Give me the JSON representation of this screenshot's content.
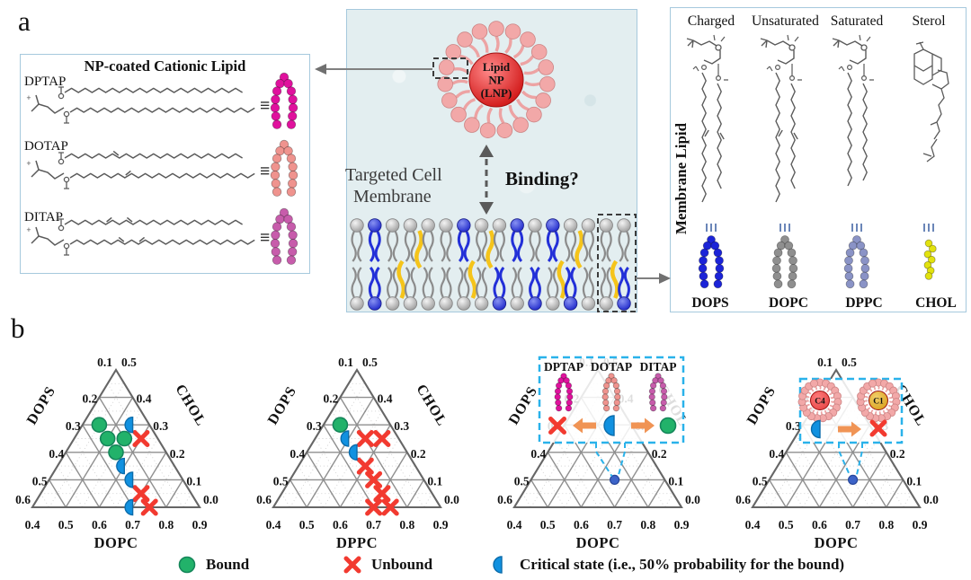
{
  "figure": {
    "panel_a_label": "a",
    "panel_b_label": "b"
  },
  "cationic_box": {
    "title": "NP-coated Cationic Lipid",
    "equiv_symbol": "≡",
    "lipids": [
      {
        "name": "DPTAP",
        "bead_color": "#e0119d",
        "double_bonds": 0
      },
      {
        "name": "DOTAP",
        "bead_color": "#ef938e",
        "double_bonds": 1
      },
      {
        "name": "DITAP",
        "bead_color": "#c75cab",
        "double_bonds": 2
      }
    ]
  },
  "center_panel": {
    "np_label_lines": [
      "Lipid",
      "NP",
      "(LNP)"
    ],
    "membrane_caption_lines": [
      "Targeted Cell",
      "Membrane"
    ],
    "binding_question": "Binding?"
  },
  "membrane_box": {
    "side_label": "Membrane Lipid",
    "headers": [
      "Charged",
      "Unsaturated",
      "Saturated",
      "Sterol"
    ],
    "equiv_symbol": "|||",
    "lipids": [
      {
        "name": "DOPS",
        "bead_color": "#1c24d8"
      },
      {
        "name": "DOPC",
        "bead_color": "#8f8f8f"
      },
      {
        "name": "DPPC",
        "bead_color": "#8a93c6"
      },
      {
        "name": "CHOL",
        "bead_color": "#e2e20e"
      }
    ]
  },
  "legend": {
    "items": [
      {
        "marker": "bound",
        "label": "Bound"
      },
      {
        "marker": "unbound",
        "label": "Unbound"
      },
      {
        "marker": "critical",
        "label": "Critical state (i.e., 50% probability for the bound)"
      }
    ]
  },
  "chart_data": [
    {
      "type": "ternary",
      "axes": {
        "left": "DOPS",
        "right": "CHOL",
        "bottom": "DOPC"
      },
      "ticks": {
        "left": [
          "0.1",
          "0.2",
          "0.3",
          "0.4",
          "0.5",
          "0.6"
        ],
        "right": [
          "0.5",
          "0.4",
          "0.3",
          "0.2",
          "0.1",
          "0.0"
        ],
        "bottom": [
          "0.4",
          "0.5",
          "0.6",
          "0.7",
          "0.8",
          "0.9"
        ]
      },
      "points": {
        "bound": [
          [
            0.25,
            0.3,
            0.45
          ],
          [
            0.25,
            0.25,
            0.5
          ],
          [
            0.2,
            0.25,
            0.55
          ],
          [
            0.25,
            0.2,
            0.55
          ]
        ],
        "critical": [
          [
            0.15,
            0.3,
            0.55
          ],
          [
            0.25,
            0.15,
            0.6
          ],
          [
            0.25,
            0.1,
            0.65
          ],
          [
            0.3,
            0.0,
            0.7
          ]
        ],
        "unbound": [
          [
            0.15,
            0.25,
            0.6
          ],
          [
            0.25,
            0.05,
            0.7
          ],
          [
            0.25,
            0.0,
            0.75
          ]
        ]
      }
    },
    {
      "type": "ternary",
      "axes": {
        "left": "DOPS",
        "right": "CHOL",
        "bottom": "DPPC"
      },
      "ticks": {
        "left": [
          "0.1",
          "0.2",
          "0.3",
          "0.4",
          "0.5",
          "0.6"
        ],
        "right": [
          "0.5",
          "0.4",
          "0.3",
          "0.2",
          "0.1",
          "0.0"
        ],
        "bottom": [
          "0.4",
          "0.5",
          "0.6",
          "0.7",
          "0.8",
          "0.9"
        ]
      },
      "points": {
        "bound": [
          [
            0.25,
            0.3,
            0.45
          ]
        ],
        "critical": [
          [
            0.25,
            0.25,
            0.5
          ],
          [
            0.25,
            0.2,
            0.55
          ]
        ],
        "unbound": [
          [
            0.2,
            0.25,
            0.55
          ],
          [
            0.15,
            0.25,
            0.6
          ],
          [
            0.25,
            0.15,
            0.6
          ],
          [
            0.25,
            0.1,
            0.65
          ],
          [
            0.25,
            0.05,
            0.7
          ],
          [
            0.3,
            0.0,
            0.7
          ],
          [
            0.25,
            0.0,
            0.75
          ]
        ]
      }
    },
    {
      "type": "ternary",
      "axes": {
        "left": "DOPS",
        "right": "CHOL",
        "bottom": "DOPC"
      },
      "ticks": {
        "left": [
          "0.1",
          "0.2",
          "0.3",
          "0.4",
          "0.5",
          "0.6"
        ],
        "right": [
          "0.5",
          "0.4",
          "0.3",
          "0.2",
          "0.1",
          "0.0"
        ],
        "bottom": [
          "0.4",
          "0.5",
          "0.6",
          "0.7",
          "0.8",
          "0.9"
        ]
      },
      "points": {
        "reference": [
          [
            0.25,
            0.1,
            0.65
          ]
        ]
      },
      "inset": {
        "kind": "lipid-compare",
        "labels": [
          "DPTAP",
          "DOTAP",
          "DITAP"
        ],
        "bead_colors": [
          "#e0119d",
          "#ef938e",
          "#c75cab"
        ],
        "markers": [
          "unbound",
          "arrow-left",
          "critical",
          "arrow-right",
          "bound"
        ]
      }
    },
    {
      "type": "ternary",
      "axes": {
        "left": "DOPS",
        "right": "CHOL",
        "bottom": "DOPC"
      },
      "ticks": {
        "left": [
          "0.1",
          "0.2",
          "0.3",
          "0.4",
          "0.5",
          "0.6"
        ],
        "right": [
          "0.5",
          "0.4",
          "0.3",
          "0.2",
          "0.1",
          "0.0"
        ],
        "bottom": [
          "0.4",
          "0.5",
          "0.6",
          "0.7",
          "0.8",
          "0.9"
        ]
      },
      "points": {
        "reference": [
          [
            0.25,
            0.1,
            0.65
          ]
        ]
      },
      "inset": {
        "kind": "np-compare",
        "nps": [
          {
            "label": "C4",
            "core_color": "#e64747"
          },
          {
            "label": "C1",
            "core_color": "#d9a21f"
          }
        ],
        "markers": [
          "critical",
          "arrow-right",
          "unbound"
        ]
      }
    }
  ],
  "colors": {
    "bound": "#22b26a",
    "bound_edge": "#15865a",
    "unbound": "#f23a30",
    "critical": "#1191e0",
    "critical_edge": "#0b6cab",
    "reference_dot": "#3c63c8",
    "inset_border": "#2ab2ea",
    "arrow_orange": "#f09455",
    "np_core": "#e64747",
    "np_corona": "#f2a8a8",
    "membrane_blue": "#2330d8",
    "membrane_gray": "#8b8b8b",
    "cholesterol_yellow": "#f5c41a",
    "box_border": "#a6c9dd",
    "center_bg": "#e3eef0",
    "grid_major": "#8f8f8f",
    "grid_minor": "#cfcfcf",
    "triangle_edge": "#666666",
    "structure_line": "#5a5a5a"
  }
}
